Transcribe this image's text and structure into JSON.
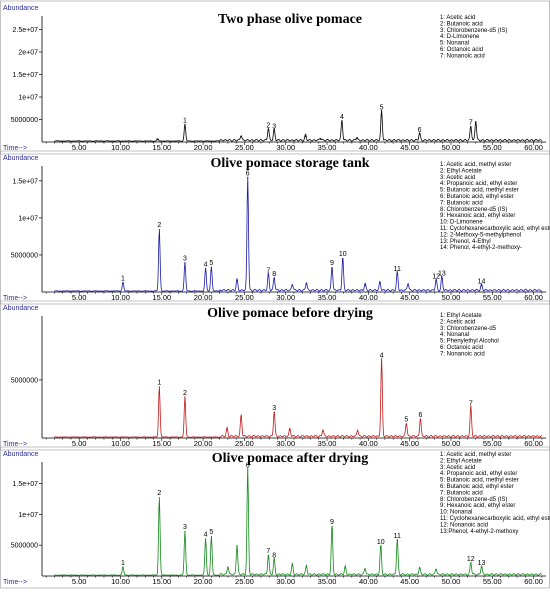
{
  "colors": {
    "panel_1": "#000000",
    "panel_2": "#1a1aa6",
    "panel_3": "#c41a1a",
    "panel_4": "#12891a",
    "axis_label": "#2a2aa0"
  },
  "chart_data": [
    {
      "type": "line",
      "title": "Two phase olive pomace",
      "ylabel": "Abundance",
      "xlabel": "Time-->",
      "xlim": [
        0.5,
        61.5
      ],
      "ylim": [
        0,
        28000000
      ],
      "x_ticks": [
        "5.00",
        "10.00",
        "15.00",
        "20.00",
        "25.00",
        "30.00",
        "35.00",
        "40.00",
        "45.00",
        "50.00",
        "55.00",
        "60.00"
      ],
      "y_ticks": [
        {
          "value": 5000000,
          "label": "5000000"
        },
        {
          "value": 10000000,
          "label": "1e+07"
        },
        {
          "value": 15000000,
          "label": "1.5e+07"
        },
        {
          "value": 20000000,
          "label": "2e+07"
        },
        {
          "value": 25000000,
          "label": "2.5e+07"
        }
      ],
      "legend": [
        "1: Acetic acid",
        "2: Butanoic acid",
        "3: Chlorobenzene-d5 (IS)",
        "4: D-Limonene",
        "5: Nonanal",
        "6: Octanoic acid",
        "7: Nonanoic acid"
      ],
      "legend_position": "top-right",
      "peaks": [
        {
          "x": 17.8,
          "y": 3800000,
          "label": "1"
        },
        {
          "x": 27.9,
          "y": 2700000,
          "label": "2"
        },
        {
          "x": 28.6,
          "y": 2500000,
          "label": "3"
        },
        {
          "x": 36.8,
          "y": 4600000,
          "label": "4"
        },
        {
          "x": 41.6,
          "y": 6700000,
          "label": "5"
        },
        {
          "x": 46.2,
          "y": 1700000,
          "label": "6"
        },
        {
          "x": 52.4,
          "y": 3300000,
          "label": "7"
        },
        {
          "x": 14.5,
          "y": 500000,
          "label": ""
        },
        {
          "x": 24.6,
          "y": 1200000,
          "label": ""
        },
        {
          "x": 32.4,
          "y": 1200000,
          "label": ""
        },
        {
          "x": 34.2,
          "y": 600000,
          "label": ""
        },
        {
          "x": 38.6,
          "y": 700000,
          "label": ""
        },
        {
          "x": 53.0,
          "y": 4400000,
          "label": ""
        }
      ]
    },
    {
      "type": "line",
      "title": "Olive pomace storage tank",
      "ylabel": "Abundance",
      "xlabel": "Time-->",
      "xlim": [
        0.5,
        61.5
      ],
      "ylim": [
        0,
        17000000
      ],
      "x_ticks": [
        "5.00",
        "10.00",
        "15.00",
        "20.00",
        "25.00",
        "30.00",
        "35.00",
        "40.00",
        "45.00",
        "50.00",
        "55.00",
        "60.00"
      ],
      "y_ticks": [
        {
          "value": 5000000,
          "label": "5000000"
        },
        {
          "value": 10000000,
          "label": "1e+07"
        },
        {
          "value": 15000000,
          "label": "1.5e+07"
        }
      ],
      "legend": [
        "1: Acetic acid, methyl ester",
        "2: Ethyl Acetate",
        "3: Acetic acid",
        "4: Propanoic acid, ethyl ester",
        "5: Butanoic acid, methyl ester",
        "6: Butanoic acid, ethyl ester",
        "7: Butanoic acid",
        "8: Chlorobenzene-d5 (IS)",
        "9: Hexanoic acid, ethyl ester",
        "10: D-Limonene",
        "11: Cyclohexanecarboxylic acid, ethyl ester",
        "12: 2-Methoxy-5-methylphenol",
        "13: Phenol, 4-Ethyl",
        "14: Phenol, 4-ethyl-2-methoxy-"
      ],
      "legend_position": "top-right",
      "peaks": [
        {
          "x": 10.3,
          "y": 1200000,
          "label": "1"
        },
        {
          "x": 14.7,
          "y": 8400000,
          "label": "2"
        },
        {
          "x": 17.8,
          "y": 3900000,
          "label": "3"
        },
        {
          "x": 20.3,
          "y": 3100000,
          "label": "4"
        },
        {
          "x": 21.0,
          "y": 3300000,
          "label": "5"
        },
        {
          "x": 25.4,
          "y": 15400000,
          "label": "6"
        },
        {
          "x": 27.9,
          "y": 2300000,
          "label": "7"
        },
        {
          "x": 28.6,
          "y": 1800000,
          "label": "8"
        },
        {
          "x": 35.6,
          "y": 3300000,
          "label": "9"
        },
        {
          "x": 36.9,
          "y": 4500000,
          "label": "10"
        },
        {
          "x": 43.5,
          "y": 2500000,
          "label": "11"
        },
        {
          "x": 48.2,
          "y": 1500000,
          "label": "12"
        },
        {
          "x": 48.9,
          "y": 1900000,
          "label": "13"
        },
        {
          "x": 53.7,
          "y": 800000,
          "label": "14"
        },
        {
          "x": 24.1,
          "y": 1500000,
          "label": ""
        },
        {
          "x": 30.8,
          "y": 900000,
          "label": ""
        },
        {
          "x": 32.5,
          "y": 1100000,
          "label": ""
        },
        {
          "x": 39.6,
          "y": 900000,
          "label": ""
        },
        {
          "x": 41.4,
          "y": 1200000,
          "label": ""
        },
        {
          "x": 44.8,
          "y": 1000000,
          "label": ""
        }
      ]
    },
    {
      "type": "line",
      "title": "Olive pomace before drying",
      "ylabel": "Abundance",
      "xlabel": "Time-->",
      "xlim": [
        0.5,
        61.5
      ],
      "ylim": [
        0,
        10500000
      ],
      "x_ticks": [
        "5.00",
        "10.00",
        "15.00",
        "20.00",
        "25.00",
        "30.00",
        "35.00",
        "40.00",
        "45.00",
        "50.00",
        "55.00",
        "60.00"
      ],
      "y_ticks": [
        {
          "value": 5000000,
          "label": "5000000"
        }
      ],
      "legend": [
        "1: Ethyl Acetate",
        "2: Acetic acid",
        "3: Chlorobenzene-d5",
        "4: Nonanal",
        "5: Phenylethyl Alcohol",
        "6: Octanoic acid",
        "7: Nonanoic acid"
      ],
      "legend_position": "top-right",
      "peaks": [
        {
          "x": 14.7,
          "y": 4400000,
          "label": "1"
        },
        {
          "x": 17.8,
          "y": 3500000,
          "label": "2"
        },
        {
          "x": 28.6,
          "y": 2200000,
          "label": "3"
        },
        {
          "x": 41.6,
          "y": 6700000,
          "label": "4"
        },
        {
          "x": 44.6,
          "y": 1200000,
          "label": "5"
        },
        {
          "x": 46.3,
          "y": 1600000,
          "label": "6"
        },
        {
          "x": 52.4,
          "y": 2600000,
          "label": "7"
        },
        {
          "x": 22.9,
          "y": 700000,
          "label": ""
        },
        {
          "x": 24.6,
          "y": 1900000,
          "label": ""
        },
        {
          "x": 30.5,
          "y": 700000,
          "label": ""
        },
        {
          "x": 34.5,
          "y": 600000,
          "label": ""
        },
        {
          "x": 38.7,
          "y": 600000,
          "label": ""
        }
      ]
    },
    {
      "type": "line",
      "title": "Olive pomace after drying",
      "ylabel": "Abundance",
      "xlabel": "Time-->",
      "xlim": [
        0.5,
        61.5
      ],
      "ylim": [
        0,
        18500000
      ],
      "x_ticks": [
        "5.00",
        "10.00",
        "15.00",
        "20.00",
        "25.00",
        "30.00",
        "35.00",
        "40.00",
        "45.00",
        "50.00",
        "55.00",
        "60.00"
      ],
      "y_ticks": [
        {
          "value": 5000000,
          "label": "5000000"
        },
        {
          "value": 10000000,
          "label": "1e+07"
        },
        {
          "value": 15000000,
          "label": "1.5e+07"
        }
      ],
      "legend": [
        "1: Acetic acid, methyl ester",
        "2: Ethyl Acetate",
        "3: Acetic acid",
        "4: Propanoic acid, ethyl ester",
        "5: Butanoic acid, methyl ester",
        "6: Butanoic acid, ethyl ester",
        "7: Butanoic acid",
        "8: Chlorobenzene-d5 (IS)",
        "9: Hexanoic acid, ethyl ester",
        "10: Nonanal",
        "11: Cyclohexanecarboxylic acid, ethyl ester",
        "12: Nonanoic acid",
        "13:Phenol, 4-ethyl-2-methoxy"
      ],
      "legend_position": "top-right",
      "peaks": [
        {
          "x": 10.3,
          "y": 1400000,
          "label": "1"
        },
        {
          "x": 14.7,
          "y": 12700000,
          "label": "2"
        },
        {
          "x": 17.8,
          "y": 7200000,
          "label": "3"
        },
        {
          "x": 20.3,
          "y": 6000000,
          "label": "4"
        },
        {
          "x": 21.0,
          "y": 6400000,
          "label": "5"
        },
        {
          "x": 25.4,
          "y": 17200000,
          "label": "6"
        },
        {
          "x": 27.9,
          "y": 3300000,
          "label": "7"
        },
        {
          "x": 28.6,
          "y": 2600000,
          "label": "8"
        },
        {
          "x": 35.6,
          "y": 8000000,
          "label": "9"
        },
        {
          "x": 41.5,
          "y": 4800000,
          "label": "10"
        },
        {
          "x": 43.5,
          "y": 5800000,
          "label": "11"
        },
        {
          "x": 52.4,
          "y": 2000000,
          "label": "12"
        },
        {
          "x": 53.7,
          "y": 1400000,
          "label": "13"
        },
        {
          "x": 24.1,
          "y": 4900000,
          "label": ""
        },
        {
          "x": 23.0,
          "y": 1400000,
          "label": ""
        },
        {
          "x": 30.8,
          "y": 1700000,
          "label": ""
        },
        {
          "x": 32.5,
          "y": 1500000,
          "label": ""
        },
        {
          "x": 37.2,
          "y": 1300000,
          "label": ""
        },
        {
          "x": 39.6,
          "y": 1100000,
          "label": ""
        },
        {
          "x": 46.2,
          "y": 1200000,
          "label": ""
        },
        {
          "x": 48.2,
          "y": 1000000,
          "label": ""
        }
      ]
    }
  ]
}
